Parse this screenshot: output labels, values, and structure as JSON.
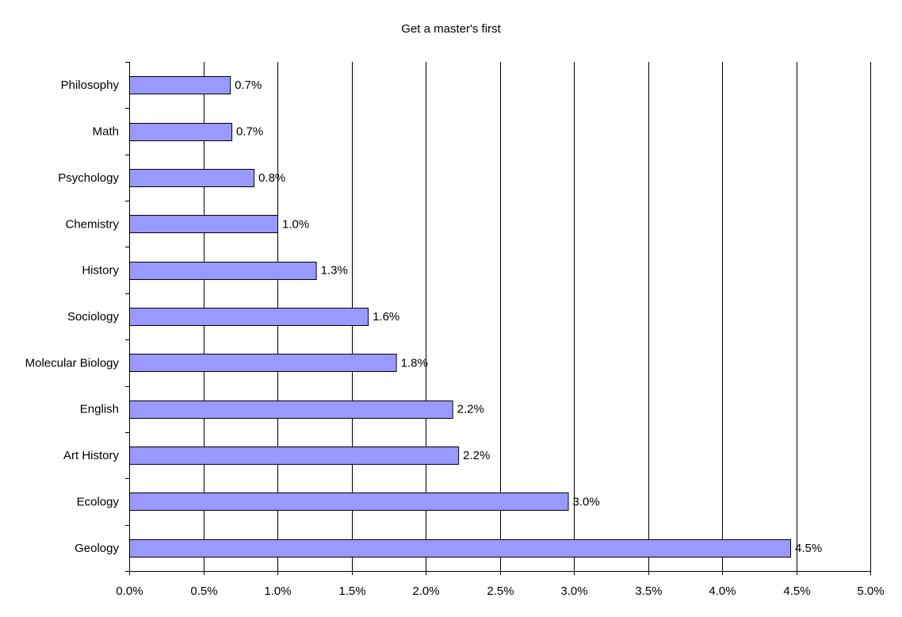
{
  "chart_data": {
    "type": "bar",
    "orientation": "horizontal",
    "title": "Get a master's first",
    "xlabel": "",
    "ylabel": "",
    "categories": [
      "Philosophy",
      "Math",
      "Psychology",
      "Chemistry",
      "History",
      "Sociology",
      "Molecular Biology",
      "English",
      "Art History",
      "Ecology",
      "Geology"
    ],
    "values": [
      0.68,
      0.69,
      0.84,
      1.0,
      1.26,
      1.61,
      1.8,
      2.18,
      2.22,
      2.96,
      4.46
    ],
    "data_labels": [
      "0.7%",
      "0.7%",
      "0.8%",
      "1.0%",
      "1.3%",
      "1.6%",
      "1.8%",
      "2.2%",
      "2.2%",
      "3.0%",
      "4.5%"
    ],
    "xlim": [
      0,
      5
    ],
    "x_ticks": [
      0,
      0.5,
      1,
      1.5,
      2,
      2.5,
      3,
      3.5,
      4,
      4.5,
      5
    ],
    "x_tick_labels": [
      "0.0%",
      "0.5%",
      "1.0%",
      "1.5%",
      "2.0%",
      "2.5%",
      "3.0%",
      "3.5%",
      "4.0%",
      "4.5%",
      "5.0%"
    ],
    "grid": "vertical",
    "legend": "none",
    "colors": {
      "bar_fill": "#9999ff",
      "bar_stroke": "#000000",
      "grid": "#000000",
      "background": "#ffffff"
    }
  }
}
